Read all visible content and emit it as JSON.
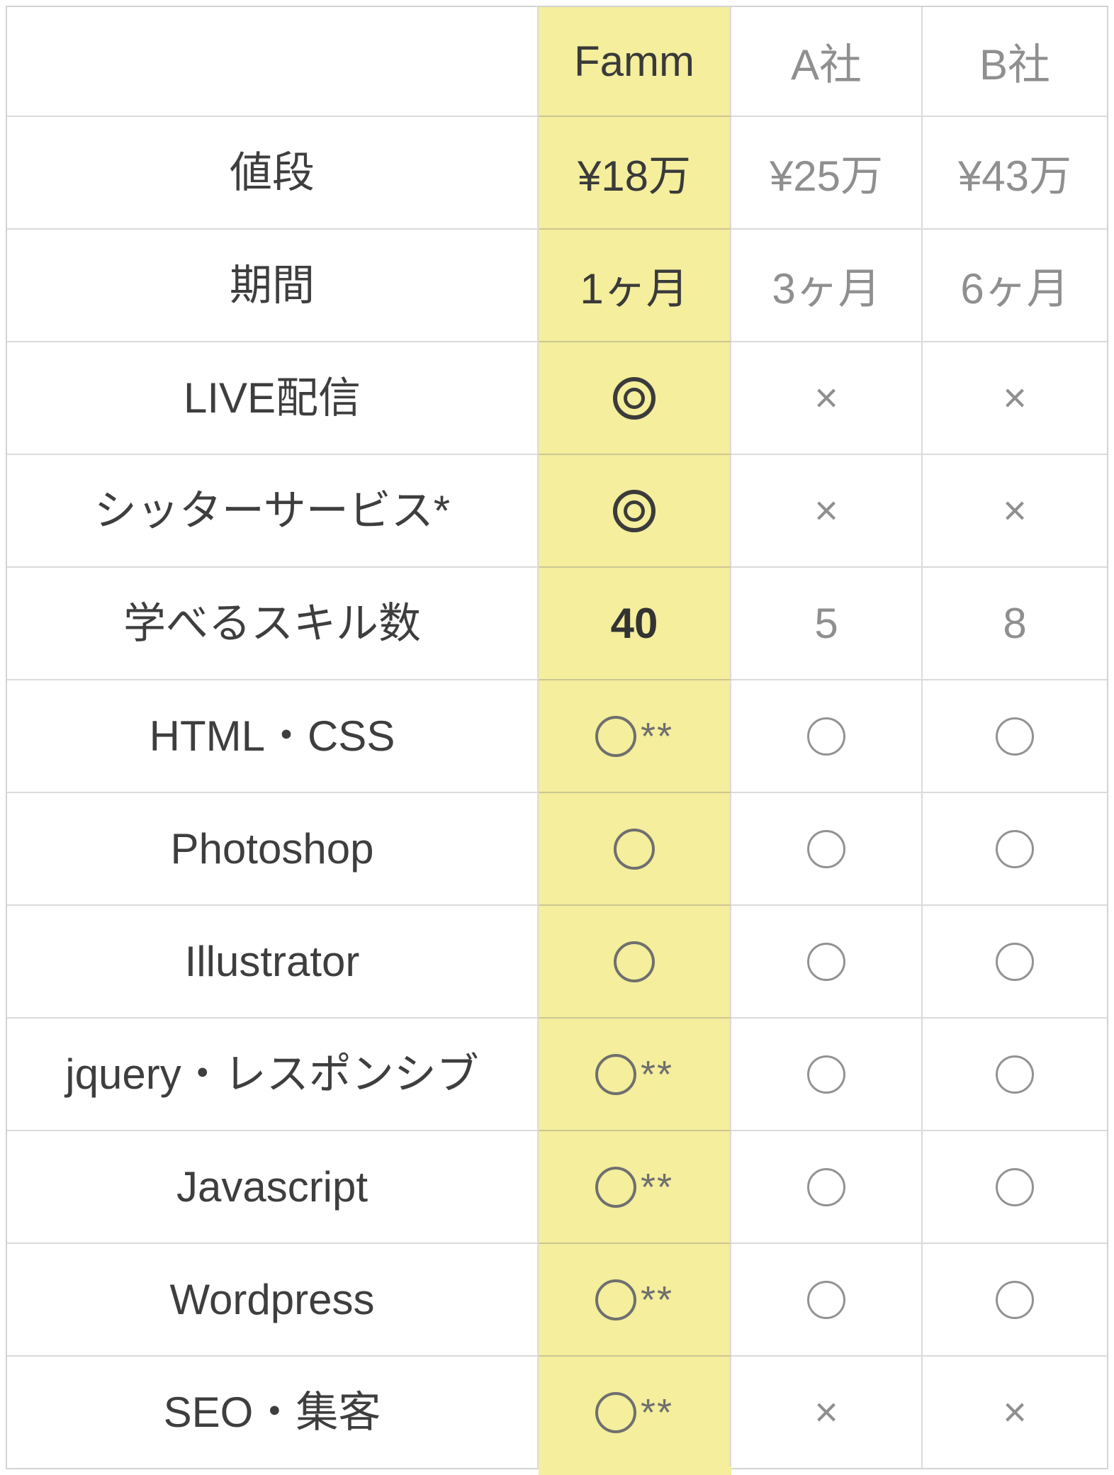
{
  "colors": {
    "highlight": "#f4ee9d",
    "dark_text": "#3a3a3a",
    "gray_text": "#8f8f8f",
    "border": "#dbdbdb"
  },
  "table": {
    "columns": [
      "",
      "Famm",
      "A社",
      "B社"
    ],
    "rows": [
      {
        "label": "値段",
        "famm": "¥18万",
        "a": "¥25万",
        "b": "¥43万"
      },
      {
        "label": "期間",
        "famm": "1ヶ月",
        "a": "3ヶ月",
        "b": "6ヶ月"
      },
      {
        "label": "LIVE配信",
        "famm": "◎",
        "a": "×",
        "b": "×"
      },
      {
        "label": "シッターサービス*",
        "famm": "◎",
        "a": "×",
        "b": "×"
      },
      {
        "label": "学べるスキル数",
        "famm": "40",
        "a": "5",
        "b": "8"
      },
      {
        "label": "HTML・CSS",
        "famm": "○**",
        "famm_suffix": "**",
        "a": "○",
        "b": "○"
      },
      {
        "label": "Photoshop",
        "famm": "○",
        "a": "○",
        "b": "○"
      },
      {
        "label": "Illustrator",
        "famm": "○",
        "a": "○",
        "b": "○"
      },
      {
        "label": "jquery・レスポンシブ",
        "famm": "○**",
        "famm_suffix": "**",
        "a": "○",
        "b": "○"
      },
      {
        "label": "Javascript",
        "famm": "○**",
        "famm_suffix": "**",
        "a": "○",
        "b": "○"
      },
      {
        "label": "Wordpress",
        "famm": "○**",
        "famm_suffix": "**",
        "a": "○",
        "b": "○"
      },
      {
        "label": "SEO・集客",
        "famm": "○**",
        "famm_suffix": "**",
        "a": "×",
        "b": "×"
      }
    ]
  }
}
